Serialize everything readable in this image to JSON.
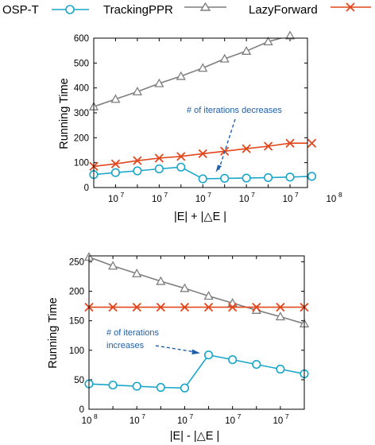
{
  "legend": [
    {
      "name": "OSP-T",
      "color": "#1aa6c9",
      "marker": "circle"
    },
    {
      "name": "TrackingPPR",
      "color": "#7f7f7f",
      "marker": "triangle"
    },
    {
      "name": "LazyForward",
      "color": "#e2461c",
      "marker": "cross"
    }
  ],
  "chart_data": [
    {
      "type": "line",
      "xlabel": "|E| + |△E |",
      "ylabel": "Running Time",
      "ylim": [
        0,
        600
      ],
      "yticks": [
        0,
        100,
        200,
        300,
        400,
        500,
        600
      ],
      "x_positions": [
        0,
        1,
        2,
        3,
        4,
        5,
        6,
        7,
        8,
        9,
        10,
        11,
        12,
        13
      ],
      "xticks": [
        {
          "pos": 1,
          "label": "10",
          "exp": "7"
        },
        {
          "pos": 3,
          "label": "10",
          "exp": "7"
        },
        {
          "pos": 5,
          "label": "10",
          "exp": "7"
        },
        {
          "pos": 7,
          "label": "10",
          "exp": "7"
        },
        {
          "pos": 9,
          "label": "10",
          "exp": "7"
        },
        {
          "pos": 11,
          "label": "10",
          "exp": "8"
        }
      ],
      "series": [
        {
          "name": "OSP-T",
          "x": [
            0,
            1,
            2,
            3,
            4,
            5,
            6,
            7,
            8,
            9,
            10
          ],
          "values": [
            52,
            60,
            67,
            75,
            82,
            35,
            37,
            38,
            40,
            42,
            45
          ]
        },
        {
          "name": "TrackingPPR",
          "x": [
            0,
            1,
            2,
            3,
            4,
            5,
            6,
            7,
            8,
            9
          ],
          "values": [
            325,
            355,
            385,
            418,
            447,
            480,
            517,
            548,
            586,
            610
          ]
        },
        {
          "name": "LazyForward",
          "x": [
            0,
            1,
            2,
            3,
            4,
            5,
            6,
            7,
            8,
            9,
            10
          ],
          "values": [
            85,
            95,
            108,
            118,
            125,
            136,
            146,
            156,
            166,
            178,
            178
          ]
        }
      ],
      "annotation": {
        "text": "# of iterations decreases",
        "points_to_index": 5
      }
    },
    {
      "type": "line",
      "xlabel": "|E| - |△E |",
      "ylabel": "Running Time",
      "ylim": [
        0,
        260
      ],
      "yticks": [
        0,
        50,
        100,
        150,
        200,
        250
      ],
      "xticks": [
        {
          "pos": 0,
          "label": "10",
          "exp": "8"
        },
        {
          "pos": 2,
          "label": "10",
          "exp": "7"
        },
        {
          "pos": 4,
          "label": "10",
          "exp": "7"
        },
        {
          "pos": 6,
          "label": "10",
          "exp": "7"
        },
        {
          "pos": 8,
          "label": "10",
          "exp": "7"
        }
      ],
      "series": [
        {
          "name": "OSP-T",
          "x": [
            0,
            1,
            2,
            3,
            4,
            5,
            6,
            7,
            8,
            9
          ],
          "values": [
            43,
            41,
            39,
            37,
            36,
            92,
            84,
            76,
            68,
            60
          ]
        },
        {
          "name": "TrackingPPR",
          "x": [
            0,
            1,
            2,
            3,
            4,
            5,
            6,
            7,
            8,
            9
          ],
          "values": [
            258,
            243,
            230,
            217,
            205,
            192,
            180,
            168,
            157,
            145
          ]
        },
        {
          "name": "LazyForward",
          "x": [
            0,
            1,
            2,
            3,
            4,
            5,
            6,
            7,
            8,
            9
          ],
          "values": [
            173,
            173,
            173,
            173,
            173,
            173,
            173,
            173,
            173,
            173
          ]
        }
      ],
      "annotation": {
        "text_line1": "# of iterations",
        "text_line2": "increases",
        "points_to_index": 5
      }
    }
  ]
}
